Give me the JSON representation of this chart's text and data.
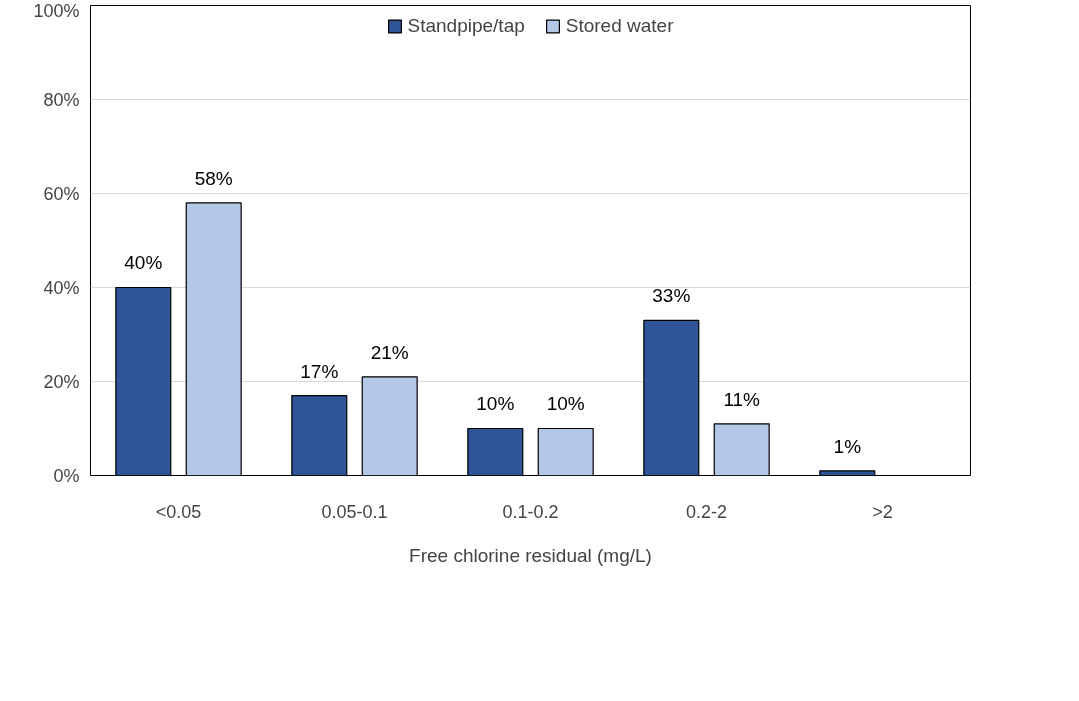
{
  "chart_data": {
    "type": "bar",
    "xlabel": "Free chlorine residual (mg/L)",
    "categories": [
      "<0.05",
      "0.05-0.1",
      "0.1-0.2",
      "0.2-2",
      ">2"
    ],
    "series": [
      {
        "name": "Standpipe/tap",
        "color": "#2f5597",
        "values": [
          40,
          17,
          10,
          33,
          1
        ],
        "value_labels": [
          "40%",
          "17%",
          "10%",
          "33%",
          "1%"
        ]
      },
      {
        "name": "Stored water",
        "color": "#b4c7e7",
        "values": [
          58,
          21,
          10,
          11,
          null
        ],
        "value_labels": [
          "58%",
          "21%",
          "10%",
          "11%",
          null
        ]
      }
    ],
    "ylim": [
      0,
      100
    ],
    "yticks": [
      {
        "value": 0,
        "label": "0%"
      },
      {
        "value": 20,
        "label": "20%"
      },
      {
        "value": 40,
        "label": "40%"
      },
      {
        "value": 60,
        "label": "60%"
      },
      {
        "value": 80,
        "label": "80%"
      },
      {
        "value": 100,
        "label": "100%"
      }
    ],
    "grid": "y",
    "legend": "top"
  }
}
